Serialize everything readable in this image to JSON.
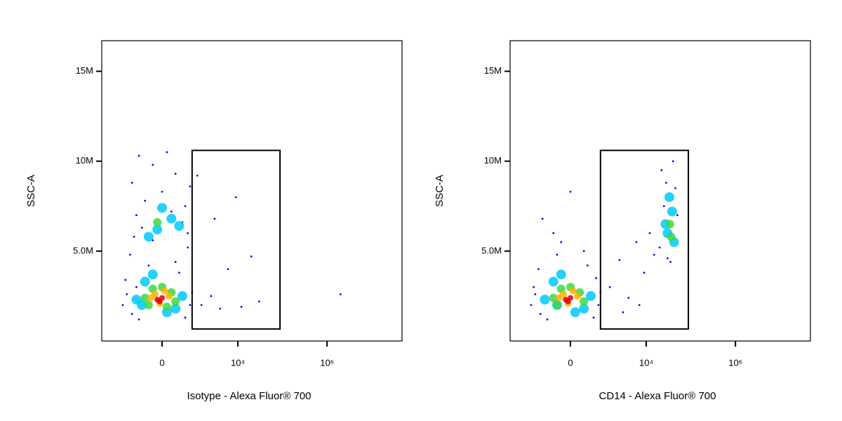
{
  "chart_data": [
    {
      "type": "scatter",
      "ylabel": "SSC-A",
      "xlabel": "Isotype - Alexa Fluor® 700",
      "xscale": "biexponential",
      "xscale_width": 400,
      "xlim": [
        -4500,
        48000000
      ],
      "ylim": [
        0,
        16700000
      ],
      "xticks": [
        0,
        {
          "value": 10000,
          "label": "10⁴"
        },
        {
          "value": 1000000,
          "label": "10⁶"
        }
      ],
      "yticks": [
        {
          "value": 5000000,
          "label": "5.0M"
        },
        {
          "value": 10000000,
          "label": "10M"
        },
        {
          "value": 15000000,
          "label": "15M"
        }
      ],
      "gate": {
        "x": [
          900,
          88000
        ],
        "y": [
          670000,
          10600000
        ]
      },
      "series": [
        {
          "color": "#0000ff",
          "x": [
            -1500,
            -1200,
            -900,
            -700,
            -1300,
            800,
            900,
            600,
            -600,
            400,
            -300,
            300,
            -1000,
            700,
            -200,
            -800,
            -500,
            500,
            200,
            -700,
            -400,
            600,
            0,
            -900,
            300,
            -200,
            700,
            -600,
            100,
            800,
            1500,
            2500,
            4000,
            6000,
            20000,
            30000,
            9000,
            1200,
            3000,
            12000,
            2000000
          ],
          "y": [
            2000000,
            2600000,
            1500000,
            3000000,
            3400000,
            2000000,
            2700000,
            1300000,
            1200000,
            3800000,
            4200000,
            4400000,
            4800000,
            5200000,
            5600000,
            5800000,
            6300000,
            6600000,
            7200000,
            7000000,
            7800000,
            7500000,
            8300000,
            8800000,
            9300000,
            9800000,
            6000000,
            10300000,
            10500000,
            8600000,
            2000000,
            2500000,
            1800000,
            4000000,
            4700000,
            2200000,
            8000000,
            9200000,
            6800000,
            1900000,
            2600000
          ]
        },
        {
          "color": "#00c8ff",
          "x": [
            -700,
            500,
            -400,
            300,
            -200,
            100,
            -100,
            200,
            0,
            -300,
            400,
            -500
          ],
          "y": [
            2300000,
            2500000,
            3300000,
            1800000,
            3700000,
            1600000,
            6200000,
            6800000,
            7400000,
            5800000,
            6400000,
            2000000
          ]
        },
        {
          "color": "#40d840",
          "x": [
            -400,
            300,
            -200,
            200,
            0,
            -300,
            100,
            -100
          ],
          "y": [
            2400000,
            2200000,
            2900000,
            2700000,
            3000000,
            2000000,
            1900000,
            6600000
          ]
        },
        {
          "color": "#ffb000",
          "x": [
            -250,
            150,
            -50,
            50,
            -150
          ],
          "y": [
            2400000,
            2500000,
            2100000,
            2800000,
            2600000
          ]
        },
        {
          "color": "#e00000",
          "x": [
            -100,
            0,
            -50
          ],
          "y": [
            2300000,
            2400000,
            2200000
          ]
        }
      ]
    },
    {
      "type": "scatter",
      "ylabel": "SSC-A",
      "xlabel": "CD14 - Alexa Fluor® 700",
      "xscale": "biexponential",
      "xscale_width": 400,
      "xlim": [
        -4500,
        48000000
      ],
      "ylim": [
        0,
        16700000
      ],
      "xticks": [
        0,
        {
          "value": 10000,
          "label": "10⁴"
        },
        {
          "value": 1000000,
          "label": "10⁶"
        }
      ],
      "yticks": [
        {
          "value": 5000000,
          "label": "5.0M"
        },
        {
          "value": 10000000,
          "label": "10M"
        },
        {
          "value": 15000000,
          "label": "15M"
        }
      ],
      "gate": {
        "x": [
          900,
          88000
        ],
        "y": [
          670000,
          10600000
        ]
      },
      "series": [
        {
          "color": "#0000ff",
          "x": [
            -1500,
            -1200,
            -900,
            -1300,
            800,
            900,
            600,
            -600,
            400,
            -300,
            300,
            -1000,
            700,
            -200,
            -800,
            0,
            -400,
            1500,
            2500,
            4000,
            6000,
            9000,
            12000,
            15000,
            20000,
            3000,
            7000,
            22000,
            45000,
            30000,
            50000,
            25000,
            40000,
            35000,
            28000
          ],
          "y": [
            2000000,
            2600000,
            1500000,
            3000000,
            2000000,
            2700000,
            1300000,
            1200000,
            4200000,
            4800000,
            5000000,
            4000000,
            3500000,
            5500000,
            6800000,
            8300000,
            6000000,
            3000000,
            4500000,
            2400000,
            5500000,
            3800000,
            6000000,
            4800000,
            5200000,
            1600000,
            2000000,
            9500000,
            8500000,
            4600000,
            7000000,
            7500000,
            10000000,
            4400000,
            8800000
          ]
        },
        {
          "color": "#00c8ff",
          "x": [
            -700,
            500,
            -400,
            300,
            -200,
            100,
            -300,
            30000,
            38000,
            33000,
            42000,
            27000
          ],
          "y": [
            2300000,
            2500000,
            3300000,
            1800000,
            3700000,
            1600000,
            2000000,
            6000000,
            7200000,
            8000000,
            5500000,
            6500000
          ]
        },
        {
          "color": "#40d840",
          "x": [
            -400,
            300,
            -200,
            200,
            0,
            -300,
            34000,
            36000
          ],
          "y": [
            2400000,
            2200000,
            2900000,
            2700000,
            3000000,
            2000000,
            6500000,
            5800000
          ]
        },
        {
          "color": "#ffb000",
          "x": [
            -250,
            150,
            -50,
            50,
            -150
          ],
          "y": [
            2400000,
            2500000,
            2100000,
            2800000,
            2600000
          ]
        },
        {
          "color": "#e00000",
          "x": [
            -100,
            0,
            -50
          ],
          "y": [
            2300000,
            2400000,
            2200000
          ]
        }
      ]
    }
  ]
}
